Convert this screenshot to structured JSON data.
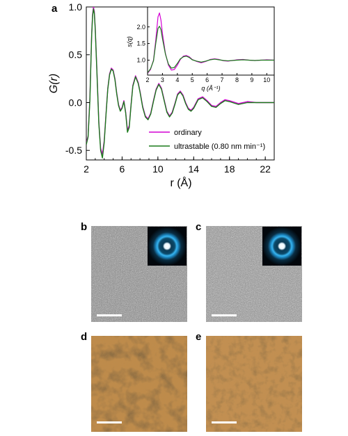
{
  "panel_labels": {
    "a": "a",
    "b": "b",
    "c": "c",
    "d": "d",
    "e": "e"
  },
  "chart_data": [
    {
      "type": "line",
      "xlabel": "r (Å)",
      "ylabel": "G(r)",
      "xlim": [
        2,
        23
      ],
      "ylim": [
        -0.6,
        1.0
      ],
      "x_ticks": [
        2,
        6,
        10,
        14,
        18,
        22
      ],
      "y_ticks": [
        -0.5,
        0.0,
        0.5,
        1.0
      ],
      "x_tick_labels": [
        "2",
        "6",
        "10",
        "14",
        "18",
        "22"
      ],
      "y_tick_labels": [
        "-0.5",
        "0.0",
        "0.5",
        "1.0"
      ],
      "legend_position": "bottom-right",
      "series": [
        {
          "name": "ordinary",
          "color": "#d400d4",
          "x": [
            2.0,
            2.2,
            2.4,
            2.6,
            2.7,
            2.8,
            2.9,
            3.0,
            3.2,
            3.4,
            3.6,
            3.8,
            4.0,
            4.2,
            4.4,
            4.6,
            4.8,
            5.0,
            5.2,
            5.4,
            5.6,
            5.8,
            6.0,
            6.2,
            6.4,
            6.6,
            6.8,
            7.0,
            7.2,
            7.5,
            7.8,
            8.0,
            8.3,
            8.6,
            8.9,
            9.2,
            9.5,
            9.8,
            10.1,
            10.4,
            10.7,
            11.0,
            11.3,
            11.6,
            11.9,
            12.2,
            12.5,
            12.8,
            13.1,
            13.4,
            13.7,
            14.0,
            14.5,
            15.0,
            15.5,
            16.0,
            16.5,
            17.0,
            17.5,
            18.0,
            19.0,
            20.0,
            21.0,
            22.0,
            23.0
          ],
          "y": [
            -0.42,
            -0.35,
            0.05,
            0.72,
            0.92,
            1.0,
            0.95,
            0.78,
            0.3,
            -0.2,
            -0.48,
            -0.54,
            -0.4,
            -0.12,
            0.15,
            0.3,
            0.36,
            0.34,
            0.25,
            0.1,
            -0.02,
            -0.08,
            -0.05,
            0.02,
            -0.1,
            -0.29,
            -0.24,
            -0.02,
            0.18,
            0.28,
            0.21,
            0.12,
            -0.04,
            -0.14,
            -0.17,
            -0.11,
            0.02,
            0.14,
            0.2,
            0.15,
            0.03,
            -0.09,
            -0.14,
            -0.1,
            -0.01,
            0.09,
            0.12,
            0.08,
            0.0,
            -0.06,
            -0.08,
            -0.05,
            0.04,
            0.06,
            0.02,
            -0.03,
            -0.04,
            0.0,
            0.03,
            0.02,
            -0.01,
            0.01,
            0.0,
            0.0,
            0.0
          ]
        },
        {
          "name": "ultrastable (0.80 nm min⁻¹)",
          "color": "#1a7a1a",
          "x": [
            2.0,
            2.2,
            2.4,
            2.6,
            2.7,
            2.8,
            2.9,
            3.0,
            3.2,
            3.4,
            3.6,
            3.8,
            4.0,
            4.2,
            4.4,
            4.6,
            4.8,
            5.0,
            5.2,
            5.4,
            5.6,
            5.8,
            6.0,
            6.2,
            6.4,
            6.6,
            6.8,
            7.0,
            7.2,
            7.5,
            7.8,
            8.0,
            8.3,
            8.6,
            8.9,
            9.2,
            9.5,
            9.8,
            10.1,
            10.4,
            10.7,
            11.0,
            11.3,
            11.6,
            11.9,
            12.2,
            12.5,
            12.8,
            13.1,
            13.4,
            13.7,
            14.0,
            14.5,
            15.0,
            15.5,
            16.0,
            16.5,
            17.0,
            17.5,
            18.0,
            19.0,
            20.0,
            21.0,
            22.0,
            23.0
          ],
          "y": [
            -0.44,
            -0.36,
            0.02,
            0.7,
            0.9,
            0.98,
            0.93,
            0.76,
            0.28,
            -0.22,
            -0.5,
            -0.58,
            -0.42,
            -0.13,
            0.14,
            0.29,
            0.35,
            0.33,
            0.24,
            0.09,
            -0.03,
            -0.09,
            -0.06,
            0.01,
            -0.11,
            -0.31,
            -0.26,
            -0.03,
            0.17,
            0.27,
            0.2,
            0.11,
            -0.05,
            -0.15,
            -0.18,
            -0.12,
            0.01,
            0.13,
            0.19,
            0.14,
            0.02,
            -0.1,
            -0.15,
            -0.11,
            -0.02,
            0.08,
            0.11,
            0.07,
            -0.01,
            -0.07,
            -0.09,
            -0.06,
            0.03,
            0.05,
            0.01,
            -0.04,
            -0.05,
            -0.01,
            0.02,
            0.01,
            -0.02,
            0.0,
            0.0,
            0.0,
            0.0
          ]
        }
      ]
    },
    {
      "type": "line",
      "xlabel": "q (Å⁻¹)",
      "ylabel": "s(q)",
      "xlim": [
        2,
        10.5
      ],
      "ylim": [
        0.55,
        2.6
      ],
      "x_ticks": [
        2,
        3,
        4,
        5,
        6,
        7,
        8,
        9,
        10
      ],
      "y_ticks": [
        1.0,
        1.5,
        2.0
      ],
      "x_tick_labels": [
        "2",
        "3",
        "4",
        "5",
        "6",
        "7",
        "8",
        "9",
        "10"
      ],
      "y_tick_labels": [
        "1.0",
        "1.5",
        "2.0"
      ],
      "series": [
        {
          "name": "ordinary",
          "color": "#d400d4",
          "x": [
            2.0,
            2.2,
            2.4,
            2.55,
            2.7,
            2.8,
            2.9,
            3.0,
            3.2,
            3.4,
            3.6,
            3.8,
            4.0,
            4.2,
            4.4,
            4.6,
            4.8,
            5.0,
            5.3,
            5.6,
            5.9,
            6.2,
            6.5,
            6.8,
            7.1,
            7.4,
            7.7,
            8.0,
            8.4,
            8.8,
            9.2,
            9.6,
            10.0,
            10.5
          ],
          "y": [
            0.6,
            0.72,
            1.0,
            1.6,
            2.3,
            2.42,
            2.2,
            1.8,
            1.2,
            0.85,
            0.7,
            0.72,
            0.85,
            1.02,
            1.12,
            1.14,
            1.1,
            1.02,
            0.96,
            0.92,
            0.96,
            1.02,
            1.04,
            1.02,
            0.98,
            0.97,
            0.99,
            1.01,
            1.02,
            1.0,
            0.99,
            1.0,
            1.01,
            1.0
          ]
        },
        {
          "name": "ultrastable (0.80 nm min⁻¹)",
          "color": "#1a7a1a",
          "x": [
            2.0,
            2.2,
            2.4,
            2.55,
            2.7,
            2.8,
            2.9,
            3.0,
            3.2,
            3.4,
            3.6,
            3.8,
            4.0,
            4.2,
            4.4,
            4.6,
            4.8,
            5.0,
            5.3,
            5.6,
            5.9,
            6.2,
            6.5,
            6.8,
            7.1,
            7.4,
            7.7,
            8.0,
            8.4,
            8.8,
            9.2,
            9.6,
            10.0,
            10.5
          ],
          "y": [
            0.62,
            0.74,
            0.98,
            1.5,
            1.95,
            2.02,
            1.92,
            1.65,
            1.18,
            0.88,
            0.76,
            0.78,
            0.9,
            1.04,
            1.1,
            1.12,
            1.08,
            1.01,
            0.97,
            0.94,
            0.97,
            1.01,
            1.03,
            1.01,
            0.99,
            0.98,
            0.99,
            1.0,
            1.01,
            1.0,
            0.99,
            1.0,
            1.0,
            1.0
          ]
        }
      ]
    }
  ],
  "images": {
    "b": {
      "kind": "TEM micrograph with diffraction inset",
      "base": "#8a8a8a"
    },
    "c": {
      "kind": "TEM micrograph with diffraction inset",
      "base": "#939393"
    },
    "d": {
      "kind": "amber-toned micrograph",
      "base": "#b57a36"
    },
    "e": {
      "kind": "amber-toned micrograph",
      "base": "#b98040"
    }
  }
}
